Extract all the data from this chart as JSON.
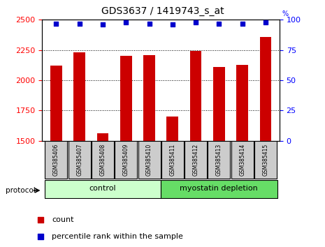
{
  "title": "GDS3637 / 1419743_s_at",
  "samples": [
    "GSM385406",
    "GSM385407",
    "GSM385408",
    "GSM385409",
    "GSM385410",
    "GSM385411",
    "GSM385412",
    "GSM385413",
    "GSM385414",
    "GSM385415"
  ],
  "counts": [
    2120,
    2230,
    1560,
    2200,
    2210,
    1700,
    2240,
    2110,
    2130,
    2360
  ],
  "percentile_ranks": [
    97,
    97,
    96,
    98,
    97,
    96,
    98,
    97,
    97,
    98
  ],
  "bar_color": "#cc0000",
  "dot_color": "#0000cc",
  "ylim_left": [
    1500,
    2500
  ],
  "ylim_right": [
    0,
    100
  ],
  "yticks_left": [
    1500,
    1750,
    2000,
    2250,
    2500
  ],
  "yticks_right": [
    0,
    25,
    50,
    75,
    100
  ],
  "groups": [
    {
      "label": "control",
      "start": 0,
      "end": 5,
      "color": "#ccffcc"
    },
    {
      "label": "myostatin depletion",
      "start": 5,
      "end": 10,
      "color": "#66dd66"
    }
  ],
  "legend_count_label": "count",
  "legend_pct_label": "percentile rank within the sample",
  "protocol_label": "protocol",
  "bar_width": 0.5
}
